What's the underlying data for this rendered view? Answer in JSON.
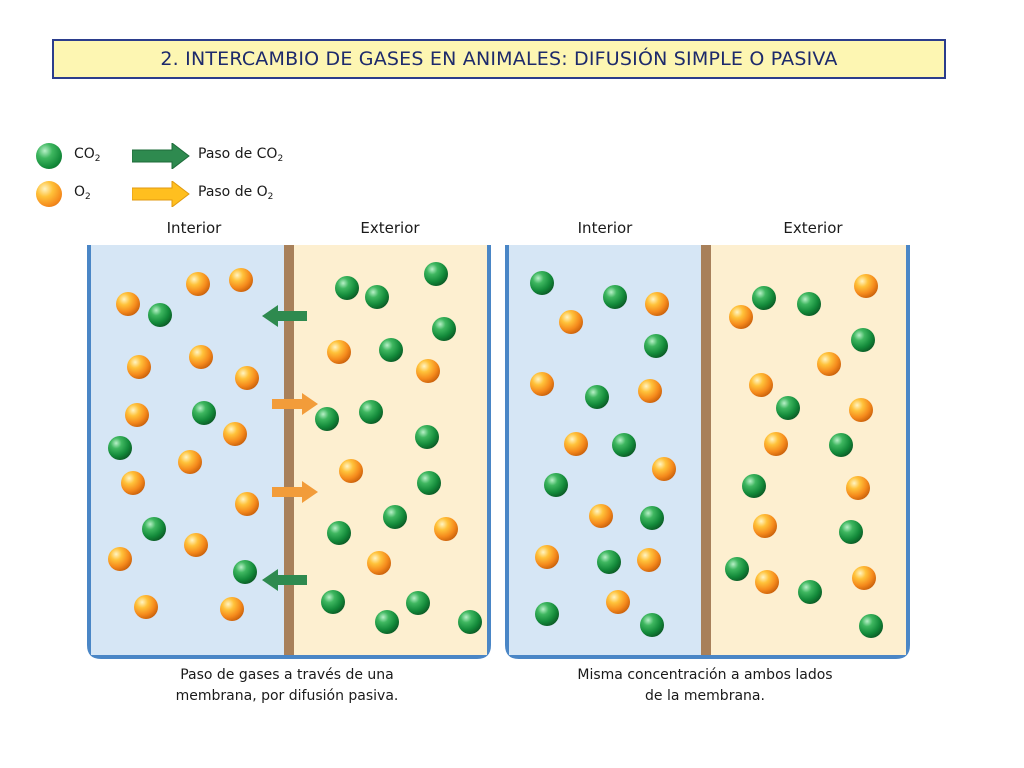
{
  "title": "2. INTERCAMBIO DE GASES EN ANIMALES: DIFUSIÓN SIMPLE O PASIVA",
  "legend": {
    "co2": {
      "gas_label": "CO",
      "gas_sub": "2",
      "flow_label": "Paso de CO",
      "flow_sub": "2",
      "color": "#1a9a46",
      "arrow_color": "#2e8a4f"
    },
    "o2": {
      "gas_label": "O",
      "gas_sub": "2",
      "flow_label": "Paso de O",
      "flow_sub": "2",
      "color": "#f5921e",
      "arrow_color": "#ffbf1f"
    }
  },
  "panels": [
    {
      "interior_label": "Interior",
      "exterior_label": "Exterior",
      "caption_line1": "Paso de gases a través de una",
      "caption_line2": "membrana, por difusión pasiva."
    },
    {
      "interior_label": "Interior",
      "exterior_label": "Exterior",
      "caption_line1": "Misma concentración a ambos lados",
      "caption_line2": "de la membrana."
    }
  ],
  "colors": {
    "interior_fill": "#d6e6f5",
    "exterior_fill": "#fdefd0",
    "container_border": "#4a86c6",
    "membrane": "#a8805a",
    "title_fill": "#fdf6b2",
    "title_border": "#2b3d8c"
  }
}
